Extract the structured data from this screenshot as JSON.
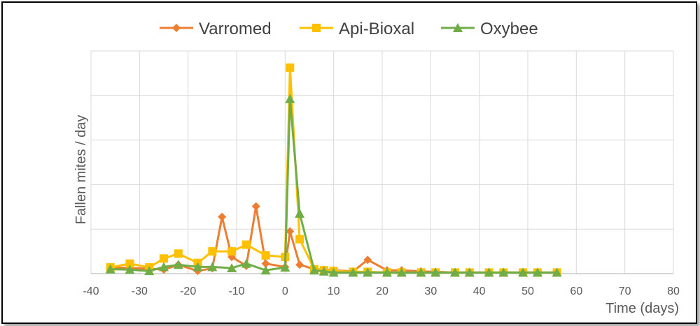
{
  "chart_data": {
    "type": "line",
    "title": "",
    "xlabel": "Time (days)",
    "ylabel": "Fallen mites / day",
    "xlim": [
      -40,
      80
    ],
    "xticks": [
      -40,
      -30,
      -20,
      -10,
      0,
      10,
      20,
      30,
      40,
      50,
      60,
      70,
      80
    ],
    "ylim": [
      0,
      1000
    ],
    "y_tick_labels_shown": false,
    "grid": "vertical and horizontal, light gray",
    "legend": "top-center",
    "series": [
      {
        "name": "Varromed",
        "color": "#ED7D31",
        "marker": "diamond",
        "x": [
          -36,
          -32,
          -28,
          -25,
          -22,
          -18,
          -15,
          -13,
          -11,
          -8,
          -6,
          -4,
          0,
          1,
          3,
          6,
          8,
          10,
          14,
          17,
          21,
          24,
          28,
          31,
          35,
          38,
          42,
          45,
          49,
          52,
          56
        ],
        "y": [
          28,
          26,
          22,
          18,
          40,
          12,
          24,
          255,
          75,
          35,
          302,
          45,
          30,
          190,
          40,
          20,
          18,
          15,
          10,
          62,
          15,
          15,
          10,
          8,
          5,
          5,
          5,
          5,
          5,
          5,
          5
        ]
      },
      {
        "name": "Api-Bioxal",
        "color": "#FFC000",
        "marker": "square",
        "x": [
          -36,
          -32,
          -28,
          -25,
          -22,
          -18,
          -15,
          -11,
          -8,
          -4,
          0,
          1,
          3,
          6,
          8,
          10,
          14,
          17,
          21,
          24,
          28,
          31,
          35,
          38,
          42,
          45,
          49,
          52,
          56
        ],
        "y": [
          28,
          45,
          28,
          68,
          90,
          48,
          100,
          100,
          130,
          82,
          75,
          925,
          155,
          20,
          15,
          12,
          8,
          8,
          5,
          5,
          5,
          5,
          5,
          5,
          5,
          5,
          5,
          5,
          5
        ]
      },
      {
        "name": "Oxybee",
        "color": "#70AD47",
        "marker": "triangle",
        "x": [
          -36,
          -32,
          -28,
          -25,
          -22,
          -18,
          -15,
          -11,
          -8,
          -4,
          0,
          1,
          3,
          6,
          8,
          10,
          14,
          17,
          21,
          24,
          28,
          31,
          35,
          38,
          42,
          45,
          49,
          52,
          56
        ],
        "y": [
          20,
          18,
          12,
          30,
          40,
          30,
          30,
          25,
          45,
          15,
          28,
          785,
          270,
          15,
          10,
          5,
          5,
          5,
          5,
          5,
          5,
          5,
          5,
          5,
          5,
          5,
          5,
          5,
          5
        ]
      }
    ]
  }
}
